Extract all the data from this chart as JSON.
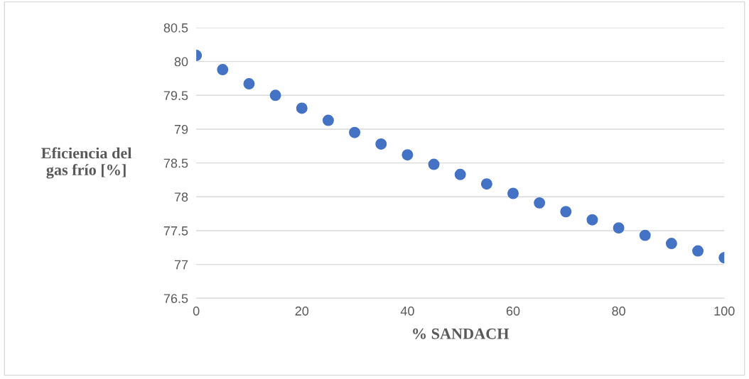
{
  "chart_data": {
    "type": "scatter",
    "xlabel": "% SANDACH",
    "ylabel": "Eficiencia del\ngas frío [%]",
    "x": [
      0,
      5,
      10,
      15,
      20,
      25,
      30,
      35,
      40,
      45,
      50,
      55,
      60,
      65,
      70,
      75,
      80,
      85,
      90,
      95,
      100
    ],
    "series": [
      {
        "color": "#4472c4",
        "values": [
          80.09,
          79.88,
          79.67,
          79.5,
          79.31,
          79.13,
          78.95,
          78.78,
          78.62,
          78.48,
          78.33,
          78.19,
          78.05,
          77.91,
          77.78,
          77.66,
          77.54,
          77.43,
          77.31,
          77.2,
          77.1
        ]
      }
    ],
    "xlim": [
      0,
      100
    ],
    "xticks": [
      0,
      20,
      40,
      60,
      80,
      100
    ],
    "ylim": [
      76.5,
      80.5
    ],
    "yticks": [
      76.5,
      77,
      77.5,
      78,
      78.5,
      79,
      79.5,
      80,
      80.5
    ],
    "grid": "y",
    "marker": "circle"
  }
}
